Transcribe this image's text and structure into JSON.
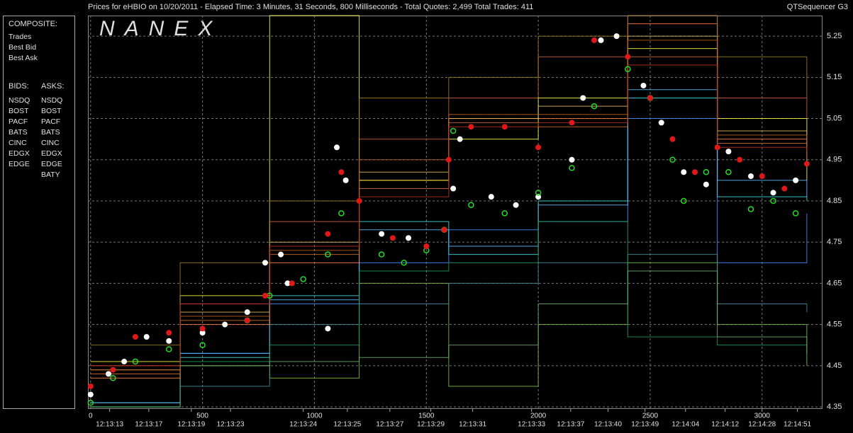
{
  "chart_data": {
    "type": "quote-sequence",
    "title": "Prices for  eHBIO  on  10/20/2011  -  Elapsed Time: 3 Minutes, 31 Seconds, 800 Milliseconds  -  Total Quotes: 2,499  Total Trades: 411",
    "brand": "QTSequencer G3",
    "watermark": "NANEX",
    "legend_titles": {
      "composite": "COMPOSITE:",
      "bids": "BIDS:",
      "asks": "ASKS:"
    },
    "xlim": [
      -12,
      3270
    ],
    "ylim": [
      4.345,
      5.3
    ],
    "xticks": [
      0,
      500,
      1000,
      1500,
      2000,
      2500,
      3000
    ],
    "yticks": [
      4.35,
      4.45,
      4.55,
      4.65,
      4.75,
      4.85,
      4.95,
      5.05,
      5.15,
      5.25
    ],
    "time_ticks": [
      {
        "value": 85,
        "label": "12:13:13"
      },
      {
        "value": 260,
        "label": "12:13:17"
      },
      {
        "value": 450,
        "label": "12:13:19"
      },
      {
        "value": 625,
        "label": "12:13:23"
      },
      {
        "value": 950,
        "label": "12:13:24"
      },
      {
        "value": 1147,
        "label": "12:13:25"
      },
      {
        "value": 1337,
        "label": "12:13:27"
      },
      {
        "value": 1520,
        "label": "12:13:29"
      },
      {
        "value": 1707,
        "label": "12:13:31"
      },
      {
        "value": 1970,
        "label": "12:13:33"
      },
      {
        "value": 2145,
        "label": "12:13:37"
      },
      {
        "value": 2312,
        "label": "12:13:40"
      },
      {
        "value": 2477,
        "label": "12:13:49"
      },
      {
        "value": 2658,
        "label": "12:14:04"
      },
      {
        "value": 2835,
        "label": "12:14:12"
      },
      {
        "value": 3000,
        "label": "12:14:28"
      },
      {
        "value": 3158,
        "label": "12:14:51"
      }
    ],
    "grid": true,
    "series": [
      {
        "name": "Trades",
        "side": "composite",
        "style": "dots",
        "color": "#ffffff",
        "x": [
          0,
          80,
          150,
          250,
          350,
          500,
          600,
          700,
          780,
          850,
          880,
          1060,
          1100,
          1140,
          1300,
          1420,
          1580,
          1620,
          1650,
          1790,
          1900,
          2000,
          2150,
          2200,
          2280,
          2350,
          2470,
          2550,
          2650,
          2750,
          2850,
          2950,
          3050,
          3150
        ],
        "values": [
          4.38,
          4.43,
          4.46,
          4.52,
          4.51,
          4.53,
          4.55,
          4.58,
          4.7,
          4.72,
          4.65,
          4.54,
          4.98,
          4.9,
          4.77,
          4.76,
          4.78,
          4.88,
          5.0,
          4.86,
          4.84,
          4.86,
          4.95,
          5.1,
          5.24,
          5.25,
          5.13,
          5.04,
          4.92,
          4.89,
          4.97,
          4.91,
          4.87,
          4.9
        ]
      },
      {
        "name": "Best Bid",
        "side": "composite",
        "style": "rings",
        "color": "#22dd22",
        "x": [
          0,
          100,
          200,
          350,
          500,
          700,
          800,
          950,
          1060,
          1120,
          1300,
          1400,
          1500,
          1580,
          1620,
          1700,
          1850,
          2000,
          2150,
          2250,
          2400,
          2500,
          2600,
          2650,
          2750,
          2850,
          2950,
          3050,
          3150
        ],
        "values": [
          4.36,
          4.42,
          4.46,
          4.49,
          4.5,
          4.56,
          4.62,
          4.66,
          4.72,
          4.82,
          4.72,
          4.7,
          4.73,
          4.78,
          5.02,
          4.84,
          4.82,
          4.87,
          4.93,
          5.08,
          5.17,
          5.1,
          4.95,
          4.85,
          4.92,
          4.92,
          4.83,
          4.85,
          4.82
        ]
      },
      {
        "name": "Best Ask",
        "side": "composite",
        "style": "dots",
        "color": "#e01818",
        "x": [
          0,
          100,
          200,
          350,
          500,
          700,
          780,
          900,
          1060,
          1120,
          1200,
          1350,
          1500,
          1580,
          1600,
          1700,
          1850,
          2000,
          2150,
          2250,
          2400,
          2500,
          2600,
          2700,
          2800,
          2900,
          3000,
          3100,
          3200
        ],
        "values": [
          4.4,
          4.44,
          4.52,
          4.53,
          4.54,
          4.56,
          4.62,
          4.65,
          4.77,
          4.92,
          4.85,
          4.76,
          4.74,
          4.78,
          4.95,
          5.03,
          5.03,
          4.98,
          5.04,
          5.24,
          5.2,
          5.1,
          5.0,
          4.92,
          4.98,
          4.95,
          4.91,
          4.88,
          4.94
        ]
      },
      {
        "name": "NSDQ",
        "side": "bids",
        "style": "step",
        "color": "#3f8fff",
        "x": [
          0,
          400,
          800,
          1200,
          1600,
          2000,
          2400,
          2800,
          3200
        ],
        "values": [
          4.35,
          4.48,
          4.6,
          4.7,
          4.78,
          4.8,
          5.05,
          4.7,
          4.82
        ]
      },
      {
        "name": "BOST",
        "side": "bids",
        "style": "step",
        "color": "#80c040",
        "x": [
          0,
          400,
          800,
          1200,
          1600,
          2000,
          2400,
          2800,
          3200
        ],
        "values": [
          4.35,
          4.45,
          4.42,
          4.65,
          4.4,
          4.55,
          4.7,
          4.55,
          4.45
        ]
      },
      {
        "name": "PACF",
        "side": "bids",
        "style": "step",
        "color": "#40e0e0",
        "x": [
          0,
          400,
          800,
          1200,
          1600,
          2000,
          2400,
          2800,
          3200
        ],
        "values": [
          4.36,
          4.47,
          4.62,
          4.8,
          4.72,
          4.85,
          5.1,
          4.86,
          4.85
        ]
      },
      {
        "name": "BATS",
        "side": "bids",
        "style": "step",
        "color": "#60c0ff",
        "x": [
          0,
          400,
          800,
          1200,
          1600,
          2000,
          2400,
          2800,
          3200
        ],
        "values": [
          4.36,
          4.48,
          4.61,
          4.78,
          4.74,
          4.84,
          5.12,
          4.9,
          4.86
        ]
      },
      {
        "name": "CINC",
        "side": "bids",
        "style": "step",
        "color": "#4090a0",
        "x": [
          0,
          400,
          800,
          1200,
          1600,
          2000,
          2400,
          2800,
          3200
        ],
        "values": [
          4.35,
          4.4,
          4.55,
          4.6,
          4.65,
          4.7,
          4.72,
          4.6,
          4.58
        ]
      },
      {
        "name": "EDGX",
        "side": "bids",
        "style": "step",
        "color": "#20a060",
        "x": [
          0,
          400,
          800,
          1200,
          1600,
          2000,
          2400,
          2800,
          3200
        ],
        "values": [
          4.35,
          4.46,
          4.5,
          4.68,
          4.7,
          4.8,
          4.52,
          4.5,
          4.46
        ]
      },
      {
        "name": "EDGE",
        "side": "bids",
        "style": "step",
        "color": "#70b070",
        "x": [
          0,
          400,
          800,
          1200,
          1600,
          2000,
          2400,
          2800,
          3200
        ],
        "values": [
          4.35,
          4.45,
          4.46,
          4.47,
          4.5,
          4.6,
          4.68,
          4.52,
          4.48
        ]
      },
      {
        "name": "NSDQ",
        "side": "asks",
        "style": "step",
        "color": "#ff8040",
        "x": [
          0,
          400,
          800,
          1200,
          1600,
          2000,
          2400,
          2800,
          3200
        ],
        "values": [
          4.42,
          4.55,
          4.7,
          4.9,
          5.05,
          5.05,
          5.28,
          5.0,
          4.98
        ]
      },
      {
        "name": "BOST",
        "side": "asks",
        "style": "step",
        "color": "#d06040",
        "x": [
          0,
          400,
          800,
          1200,
          1600,
          2000,
          2400,
          2800,
          3200
        ],
        "values": [
          4.45,
          4.6,
          4.8,
          5.0,
          5.1,
          5.2,
          5.3,
          5.1,
          5.05
        ]
      },
      {
        "name": "PACF",
        "side": "asks",
        "style": "step",
        "color": "#ffff40",
        "x": [
          0,
          400,
          800,
          1200,
          1600,
          2000,
          2400,
          2800,
          3200
        ],
        "values": [
          4.46,
          4.62,
          5.3,
          4.9,
          5.0,
          5.1,
          5.22,
          5.05,
          4.9
        ]
      },
      {
        "name": "BATS",
        "side": "asks",
        "style": "step",
        "color": "#e0c060",
        "x": [
          0,
          400,
          800,
          1200,
          1600,
          2000,
          2400,
          2800,
          3200
        ],
        "values": [
          4.44,
          4.58,
          4.75,
          4.92,
          5.05,
          5.08,
          5.25,
          5.02,
          4.97
        ]
      },
      {
        "name": "CINC",
        "side": "asks",
        "style": "step",
        "color": "#a08020",
        "x": [
          0,
          400,
          800,
          1200,
          1600,
          2000,
          2400,
          2800,
          3200
        ],
        "values": [
          4.5,
          4.7,
          4.85,
          5.1,
          5.15,
          5.25,
          5.3,
          5.2,
          5.1
        ]
      },
      {
        "name": "EDGX",
        "side": "asks",
        "style": "step",
        "color": "#d07030",
        "x": [
          0,
          400,
          800,
          1200,
          1600,
          2000,
          2400,
          2800,
          3200
        ],
        "values": [
          4.43,
          4.56,
          4.72,
          4.88,
          5.04,
          5.03,
          5.2,
          4.99,
          4.96
        ]
      },
      {
        "name": "EDGE",
        "side": "asks",
        "style": "step",
        "color": "#c06020",
        "x": [
          0,
          400,
          800,
          1200,
          1600,
          2000,
          2400,
          2800,
          3200
        ],
        "values": [
          4.44,
          4.57,
          4.73,
          4.95,
          5.06,
          5.06,
          5.24,
          5.01,
          4.95
        ]
      },
      {
        "name": "BATY",
        "side": "asks",
        "style": "step",
        "color": "#c03020",
        "x": [
          0,
          400,
          800,
          1200,
          1600,
          2000,
          2400,
          2800,
          3200
        ],
        "values": [
          4.45,
          4.6,
          4.74,
          4.86,
          5.03,
          5.04,
          5.18,
          4.98,
          4.97
        ]
      }
    ]
  }
}
